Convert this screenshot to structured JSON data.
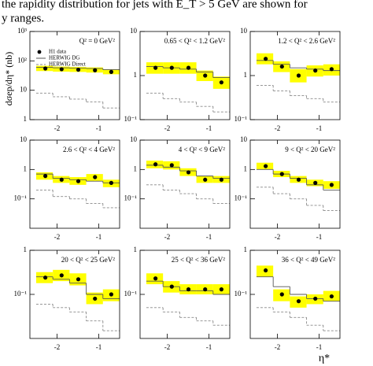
{
  "text": {
    "lines": [
      "the rapidity distribution for jets with E_T > 5 GeV are shown for",
      "y ranges."
    ]
  },
  "chart_data": [
    {
      "type": "step",
      "title": "Q² = 0 GeV²",
      "ylabel": "dσep/dη* (nb)",
      "bins": [
        -2.5,
        -2.1,
        -1.7,
        -1.3,
        -0.9,
        -0.5
      ],
      "x": [
        -2.28,
        -1.89,
        -1.49,
        -1.09,
        -0.7
      ],
      "xlim": [
        -2.65,
        -0.5
      ],
      "xticks": [
        -2,
        -1
      ],
      "ylim": [
        1,
        1000
      ],
      "yticks": [
        1,
        10,
        {
          "value": 100,
          "label": "10²"
        },
        {
          "value": 1000,
          "label": "10³"
        }
      ],
      "log_y": true,
      "legend": "upper left",
      "series": [
        {
          "name": "H1 data",
          "color": "#000000",
          "band_color": "#ffff00",
          "values": [
            55,
            52,
            50,
            48,
            42
          ],
          "band_low": [
            45,
            43,
            42,
            40,
            35
          ],
          "band_high": [
            68,
            64,
            62,
            60,
            52
          ]
        },
        {
          "name": "HERWIG DG",
          "color": "#555555",
          "dash": false,
          "values": [
            60,
            58,
            56,
            55,
            50
          ]
        },
        {
          "name": "HERWIG Direct",
          "color": "#888888",
          "dash": true,
          "values": [
            8,
            6,
            5,
            4,
            2.5
          ]
        }
      ]
    },
    {
      "type": "step",
      "title": "0.65 < Q² < 1.2 GeV²",
      "bins": [
        -2.5,
        -2.1,
        -1.7,
        -1.3,
        -0.9,
        -0.5
      ],
      "x": [
        -2.28,
        -1.89,
        -1.49,
        -1.09,
        -0.7
      ],
      "xlim": [
        -2.65,
        -0.5
      ],
      "xticks": [
        -2,
        -1
      ],
      "ylim": [
        0.1,
        10
      ],
      "yticks": [
        {
          "value": 0.1,
          "label": "10⁻¹"
        },
        1,
        10
      ],
      "log_y": true,
      "series": [
        {
          "color": "#000000",
          "band_color": "#ffff00",
          "values": [
            1.5,
            1.5,
            1.5,
            1.0,
            0.7
          ],
          "band_low": [
            1.1,
            1.1,
            1.1,
            0.75,
            0.5
          ],
          "band_high": [
            2.0,
            2.0,
            2.0,
            1.3,
            0.95
          ]
        },
        {
          "color": "#555555",
          "dash": false,
          "values": [
            1.6,
            1.5,
            1.4,
            1.2,
            0.9
          ]
        },
        {
          "color": "#888888",
          "dash": true,
          "values": [
            0.4,
            0.3,
            0.25,
            0.2,
            0.15
          ]
        }
      ]
    },
    {
      "type": "step",
      "title": "1.2 < Q² < 2.6 GeV²",
      "bins": [
        -2.5,
        -2.1,
        -1.7,
        -1.3,
        -0.9,
        -0.5
      ],
      "x": [
        -2.28,
        -1.89,
        -1.49,
        -1.09,
        -0.7
      ],
      "xlim": [
        -2.65,
        -0.5
      ],
      "xticks": [
        -2,
        -1
      ],
      "ylim": [
        0.1,
        10
      ],
      "yticks": [
        {
          "value": 0.1,
          "label": "10⁻¹"
        },
        1,
        10
      ],
      "log_y": true,
      "series": [
        {
          "color": "#000000",
          "band_color": "#ffff00",
          "values": [
            2.4,
            1.6,
            1.0,
            1.3,
            1.4
          ],
          "band_low": [
            1.8,
            1.2,
            0.7,
            0.95,
            1.0
          ],
          "band_high": [
            3.2,
            2.1,
            1.4,
            1.7,
            1.8
          ]
        },
        {
          "color": "#555555",
          "dash": false,
          "values": [
            2.2,
            1.8,
            1.5,
            1.4,
            1.3
          ]
        },
        {
          "color": "#888888",
          "dash": true,
          "values": [
            0.6,
            0.45,
            0.35,
            0.3,
            0.25
          ]
        }
      ]
    },
    {
      "type": "step",
      "title": "2.6 < Q² < 4 GeV²",
      "bins": [
        -2.5,
        -2.1,
        -1.7,
        -1.3,
        -0.9,
        -0.5
      ],
      "x": [
        -2.28,
        -1.89,
        -1.49,
        -1.09,
        -0.7
      ],
      "xlim": [
        -2.65,
        -0.5
      ],
      "xticks": [
        -2,
        -1
      ],
      "ylim": [
        0.01,
        10
      ],
      "yticks": [
        {
          "value": 0.1,
          "label": "10⁻¹"
        },
        1,
        10
      ],
      "log_y": true,
      "series": [
        {
          "color": "#000000",
          "band_color": "#ffff00",
          "values": [
            0.6,
            0.45,
            0.4,
            0.55,
            0.35
          ],
          "band_low": [
            0.45,
            0.35,
            0.3,
            0.4,
            0.25
          ],
          "band_high": [
            0.8,
            0.6,
            0.55,
            0.7,
            0.45
          ]
        },
        {
          "color": "#555555",
          "dash": false,
          "values": [
            0.7,
            0.5,
            0.45,
            0.4,
            0.35
          ]
        },
        {
          "color": "#888888",
          "dash": true,
          "values": [
            0.2,
            0.12,
            0.1,
            0.07,
            0.05
          ]
        }
      ]
    },
    {
      "type": "step",
      "title": "4 < Q² < 9 GeV²",
      "bins": [
        -2.5,
        -2.1,
        -1.7,
        -1.3,
        -0.9,
        -0.5
      ],
      "x": [
        -2.28,
        -1.89,
        -1.49,
        -1.09,
        -0.7
      ],
      "xlim": [
        -2.65,
        -0.5
      ],
      "xticks": [
        -2,
        -1
      ],
      "ylim": [
        0.01,
        10
      ],
      "yticks": [
        {
          "value": 0.1,
          "label": "10⁻¹"
        },
        1,
        10
      ],
      "log_y": true,
      "series": [
        {
          "color": "#000000",
          "band_color": "#ffff00",
          "values": [
            1.5,
            1.4,
            0.8,
            0.45,
            0.45
          ],
          "band_low": [
            1.1,
            1.0,
            0.6,
            0.35,
            0.35
          ],
          "band_high": [
            2.0,
            1.9,
            1.1,
            0.6,
            0.6
          ]
        },
        {
          "color": "#555555",
          "dash": false,
          "values": [
            1.4,
            1.2,
            0.9,
            0.6,
            0.5
          ]
        },
        {
          "color": "#888888",
          "dash": true,
          "values": [
            0.3,
            0.2,
            0.15,
            0.1,
            0.07
          ]
        }
      ]
    },
    {
      "type": "step",
      "title": "9 < Q² < 20 GeV²",
      "bins": [
        -2.5,
        -2.1,
        -1.7,
        -1.3,
        -0.9,
        -0.5
      ],
      "x": [
        -2.28,
        -1.89,
        -1.49,
        -1.09,
        -0.7
      ],
      "xlim": [
        -2.65,
        -0.5
      ],
      "xticks": [
        -2,
        -1
      ],
      "ylim": [
        0.01,
        10
      ],
      "yticks": [
        {
          "value": 0.1,
          "label": "10⁻¹"
        },
        1,
        10
      ],
      "log_y": true,
      "series": [
        {
          "color": "#000000",
          "band_color": "#ffff00",
          "values": [
            1.3,
            0.7,
            0.45,
            0.35,
            0.3
          ],
          "band_low": [
            1.0,
            0.55,
            0.35,
            0.27,
            0.22
          ],
          "band_high": [
            1.7,
            0.9,
            0.6,
            0.45,
            0.4
          ]
        },
        {
          "color": "#555555",
          "dash": false,
          "values": [
            1.0,
            0.7,
            0.5,
            0.3,
            0.2
          ]
        },
        {
          "color": "#888888",
          "dash": true,
          "values": [
            0.25,
            0.15,
            0.1,
            0.06,
            0.04
          ]
        }
      ]
    },
    {
      "type": "step",
      "title": "20 < Q² < 25 GeV²",
      "bins": [
        -2.5,
        -2.1,
        -1.7,
        -1.3,
        -0.9,
        -0.5
      ],
      "x": [
        -2.28,
        -1.89,
        -1.49,
        -1.09,
        -0.7
      ],
      "xlim": [
        -2.65,
        -0.5
      ],
      "xticks": [
        -2,
        -1
      ],
      "ylim": [
        0.01,
        1
      ],
      "yticks": [
        {
          "value": 0.1,
          "label": "10⁻¹"
        },
        1
      ],
      "log_y": true,
      "series": [
        {
          "color": "#000000",
          "band_color": "#ffff00",
          "values": [
            0.24,
            0.27,
            0.22,
            0.08,
            0.1
          ],
          "band_low": [
            0.18,
            0.2,
            0.16,
            0.06,
            0.07
          ],
          "band_high": [
            0.32,
            0.36,
            0.3,
            0.11,
            0.13
          ]
        },
        {
          "color": "#555555",
          "dash": false,
          "values": [
            0.25,
            0.22,
            0.18,
            0.1,
            0.08
          ]
        },
        {
          "color": "#888888",
          "dash": true,
          "values": [
            0.06,
            0.05,
            0.04,
            0.025,
            0.015
          ]
        }
      ]
    },
    {
      "type": "step",
      "title": "25 < Q² < 36 GeV²",
      "bins": [
        -2.5,
        -2.1,
        -1.7,
        -1.3,
        -0.9,
        -0.5
      ],
      "x": [
        -2.28,
        -1.89,
        -1.49,
        -1.09,
        -0.7
      ],
      "xlim": [
        -2.65,
        -0.5
      ],
      "xticks": [
        -2,
        -1
      ],
      "ylim": [
        0.01,
        1
      ],
      "yticks": [
        {
          "value": 0.1,
          "label": "10⁻¹"
        },
        1
      ],
      "log_y": true,
      "series": [
        {
          "color": "#000000",
          "band_color": "#ffff00",
          "values": [
            0.23,
            0.15,
            0.13,
            0.13,
            0.13
          ],
          "band_low": [
            0.17,
            0.11,
            0.1,
            0.1,
            0.1
          ],
          "band_high": [
            0.3,
            0.2,
            0.17,
            0.17,
            0.17
          ]
        },
        {
          "color": "#555555",
          "dash": false,
          "values": [
            0.2,
            0.15,
            0.12,
            0.12,
            0.1
          ]
        },
        {
          "color": "#888888",
          "dash": true,
          "values": [
            0.05,
            0.04,
            0.03,
            0.025,
            0.02
          ]
        }
      ]
    },
    {
      "type": "step",
      "title": "36 < Q² < 49 GeV²",
      "xlabel": "η*",
      "bins": [
        -2.5,
        -2.1,
        -1.7,
        -1.3,
        -0.9,
        -0.5
      ],
      "x": [
        -2.28,
        -1.89,
        -1.49,
        -1.09,
        -0.7
      ],
      "xlim": [
        -2.65,
        -0.5
      ],
      "xticks": [
        -2,
        -1
      ],
      "ylim": [
        0.01,
        1
      ],
      "yticks": [
        {
          "value": 0.1,
          "label": "10⁻¹"
        },
        1
      ],
      "log_y": true,
      "series": [
        {
          "color": "#000000",
          "band_color": "#ffff00",
          "values": [
            0.35,
            0.1,
            0.07,
            0.08,
            0.09
          ],
          "band_low": [
            0.25,
            0.07,
            0.05,
            0.06,
            0.07
          ],
          "band_high": [
            0.45,
            0.13,
            0.09,
            0.1,
            0.12
          ]
        },
        {
          "color": "#555555",
          "dash": false,
          "values": [
            0.25,
            0.15,
            0.1,
            0.08,
            0.07
          ]
        },
        {
          "color": "#888888",
          "dash": true,
          "values": [
            0.05,
            0.04,
            0.03,
            0.02,
            0.015
          ]
        }
      ]
    }
  ]
}
